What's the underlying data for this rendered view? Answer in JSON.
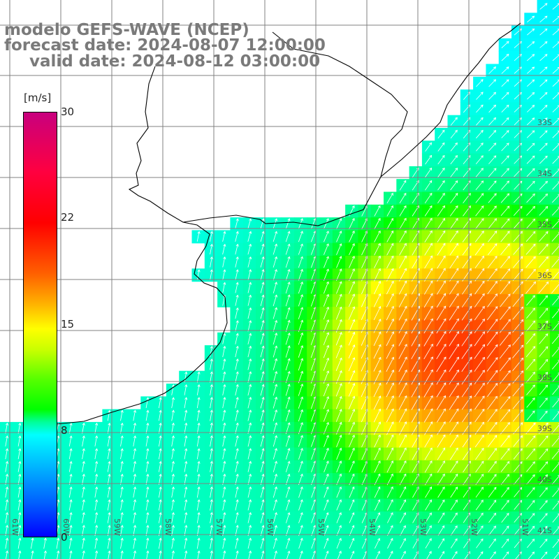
{
  "title": {
    "line1": "modelo GEFS-WAVE (NCEP)",
    "line2": "forecast date: 2024-08-07 12:00:00",
    "line3": "valid date: 2024-08-12 03:00:00"
  },
  "colorbar": {
    "unit": "[m/s]",
    "min": 0,
    "max": 30,
    "ticks": [
      {
        "label": "30",
        "value": 30
      },
      {
        "label": "22",
        "value": 22
      },
      {
        "label": "15",
        "value": 15
      },
      {
        "label": "8",
        "value": 8
      },
      {
        "label": "0",
        "value": 0
      }
    ],
    "colors": [
      "#0000ff",
      "#00ffff",
      "#00ff00",
      "#ffff00",
      "#ff0000",
      "#c8007e"
    ]
  },
  "axes": {
    "lat_labels": [
      "33S",
      "34S",
      "35S",
      "36S",
      "37S",
      "38S",
      "39S",
      "40S",
      "41S"
    ],
    "lon_labels": [
      "61W",
      "60W",
      "59W",
      "58W",
      "57W",
      "56W",
      "55W",
      "54W",
      "53W",
      "52W",
      "51W"
    ],
    "lon_range": [
      -61.5,
      -50.6
    ],
    "lat_range": [
      -41.5,
      -30.6
    ]
  },
  "field": {
    "variable": "wind speed",
    "peak_value_ms": 19,
    "peak_location": {
      "lon": -52.0,
      "lat": -37.3
    },
    "general_direction": "northeast"
  }
}
